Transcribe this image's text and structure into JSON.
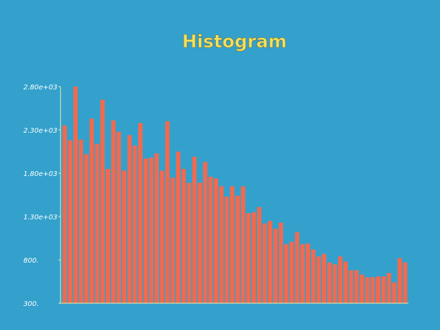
{
  "chart_data": {
    "type": "bar",
    "title": "Histogram",
    "xlabel": "",
    "ylabel": "",
    "ylim": [
      300,
      2800
    ],
    "yticks": [
      "300.",
      "800.",
      "1.30e+03",
      "1.80e+03",
      "2.30e+03",
      "2.80e+03"
    ],
    "ytick_values": [
      300,
      800,
      1300,
      1800,
      2300,
      2800
    ],
    "grid": false,
    "bar_color": "#f06a50",
    "background": "#33a1cc",
    "title_color": "#f0e060",
    "values": [
      2350,
      2180,
      2800,
      2190,
      2020,
      2430,
      2140,
      2650,
      1850,
      2410,
      2280,
      1830,
      2240,
      2120,
      2380,
      1970,
      1980,
      2030,
      1830,
      2400,
      1750,
      2050,
      1850,
      1690,
      1990,
      1690,
      1930,
      1760,
      1740,
      1650,
      1530,
      1650,
      1540,
      1650,
      1340,
      1350,
      1410,
      1220,
      1250,
      1160,
      1230,
      980,
      1010,
      1120,
      980,
      990,
      920,
      840,
      870,
      770,
      750,
      840,
      780,
      680,
      680,
      630,
      600,
      600,
      610,
      610,
      650,
      540,
      820,
      770
    ]
  }
}
